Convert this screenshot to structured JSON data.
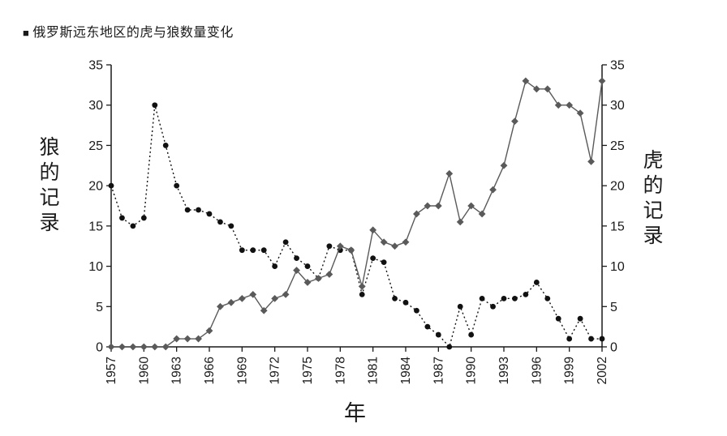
{
  "title": {
    "bullet": "■",
    "text": "俄罗斯远东地区的虎与狼数量变化"
  },
  "chart_data": {
    "type": "line",
    "title": "俄罗斯远东地区的虎与狼数量变化",
    "xlabel": "年",
    "ylabel_left": "狼的记录",
    "ylabel_right": "虎的记录",
    "ylim": [
      0,
      35
    ],
    "ytick_step": 5,
    "grid": false,
    "legend_position": "none",
    "x": [
      1957,
      1958,
      1959,
      1960,
      1961,
      1962,
      1963,
      1964,
      1965,
      1966,
      1967,
      1968,
      1969,
      1970,
      1971,
      1972,
      1973,
      1974,
      1975,
      1976,
      1977,
      1978,
      1979,
      1980,
      1981,
      1982,
      1983,
      1984,
      1985,
      1986,
      1987,
      1988,
      1989,
      1990,
      1991,
      1992,
      1993,
      1994,
      1995,
      1996,
      1997,
      1998,
      1999,
      2000,
      2001,
      2002
    ],
    "x_tick_labels": [
      "1957",
      "1960",
      "1963",
      "1966",
      "1969",
      "1972",
      "1975",
      "1978",
      "1981",
      "1984",
      "1987",
      "1990",
      "1993",
      "1996",
      "1999",
      "2002"
    ],
    "series": [
      {
        "name": "狼的记录 (wolf, left axis)",
        "axis": "left",
        "marker": "circle",
        "line": "dotted",
        "color": "#111111",
        "values": [
          20,
          16,
          15,
          16,
          30,
          25,
          20,
          17,
          17,
          16.5,
          15.5,
          15,
          12,
          12,
          12,
          10,
          13,
          11,
          10,
          8.5,
          12.5,
          12,
          12,
          6.5,
          11,
          10.5,
          6,
          5.5,
          4.5,
          2.5,
          1.5,
          0,
          5,
          1.5,
          6,
          5,
          6,
          6,
          6.5,
          8,
          6,
          3.5,
          1,
          3.5,
          1,
          1
        ]
      },
      {
        "name": "虎的记录 (tiger, right axis)",
        "axis": "right",
        "marker": "diamond",
        "line": "solid",
        "color": "#5a5a5a",
        "values": [
          0,
          0,
          0,
          0,
          0,
          0,
          1,
          1,
          1,
          2,
          5,
          5.5,
          6,
          6.5,
          4.5,
          6,
          6.5,
          9.5,
          8,
          8.5,
          9,
          12.5,
          12,
          7.5,
          14.5,
          13,
          12.5,
          13,
          16.5,
          17.5,
          17.5,
          21.5,
          15.5,
          17.5,
          16.5,
          19.5,
          22.5,
          28,
          33,
          32,
          32,
          30,
          30,
          29,
          23,
          33
        ]
      }
    ]
  }
}
